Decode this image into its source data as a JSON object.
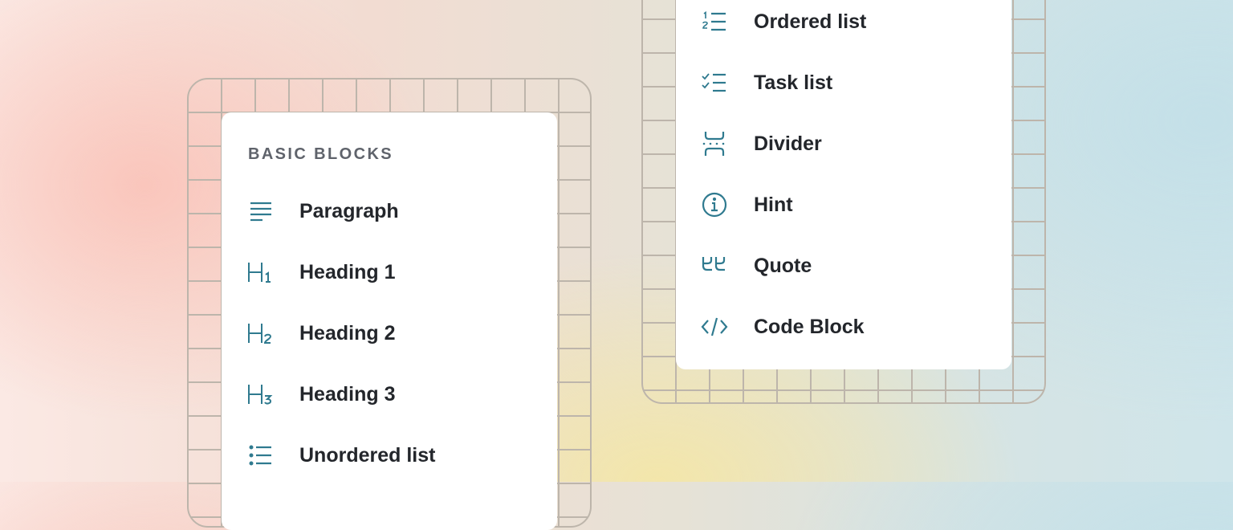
{
  "colors": {
    "icon": "#2f7a8f",
    "text": "#23262b",
    "header": "#5f636b"
  },
  "left_menu": {
    "header": "BASIC BLOCKS",
    "items": [
      {
        "label": "Paragraph",
        "icon": "paragraph-icon"
      },
      {
        "label": "Heading 1",
        "icon": "heading-1-icon"
      },
      {
        "label": "Heading 2",
        "icon": "heading-2-icon"
      },
      {
        "label": "Heading 3",
        "icon": "heading-3-icon"
      },
      {
        "label": "Unordered list",
        "icon": "unordered-list-icon"
      }
    ]
  },
  "right_menu": {
    "items": [
      {
        "label": "Ordered list",
        "icon": "ordered-list-icon"
      },
      {
        "label": "Task list",
        "icon": "task-list-icon"
      },
      {
        "label": "Divider",
        "icon": "divider-icon"
      },
      {
        "label": "Hint",
        "icon": "info-icon"
      },
      {
        "label": "Quote",
        "icon": "quote-icon"
      },
      {
        "label": "Code Block",
        "icon": "code-icon"
      }
    ]
  }
}
